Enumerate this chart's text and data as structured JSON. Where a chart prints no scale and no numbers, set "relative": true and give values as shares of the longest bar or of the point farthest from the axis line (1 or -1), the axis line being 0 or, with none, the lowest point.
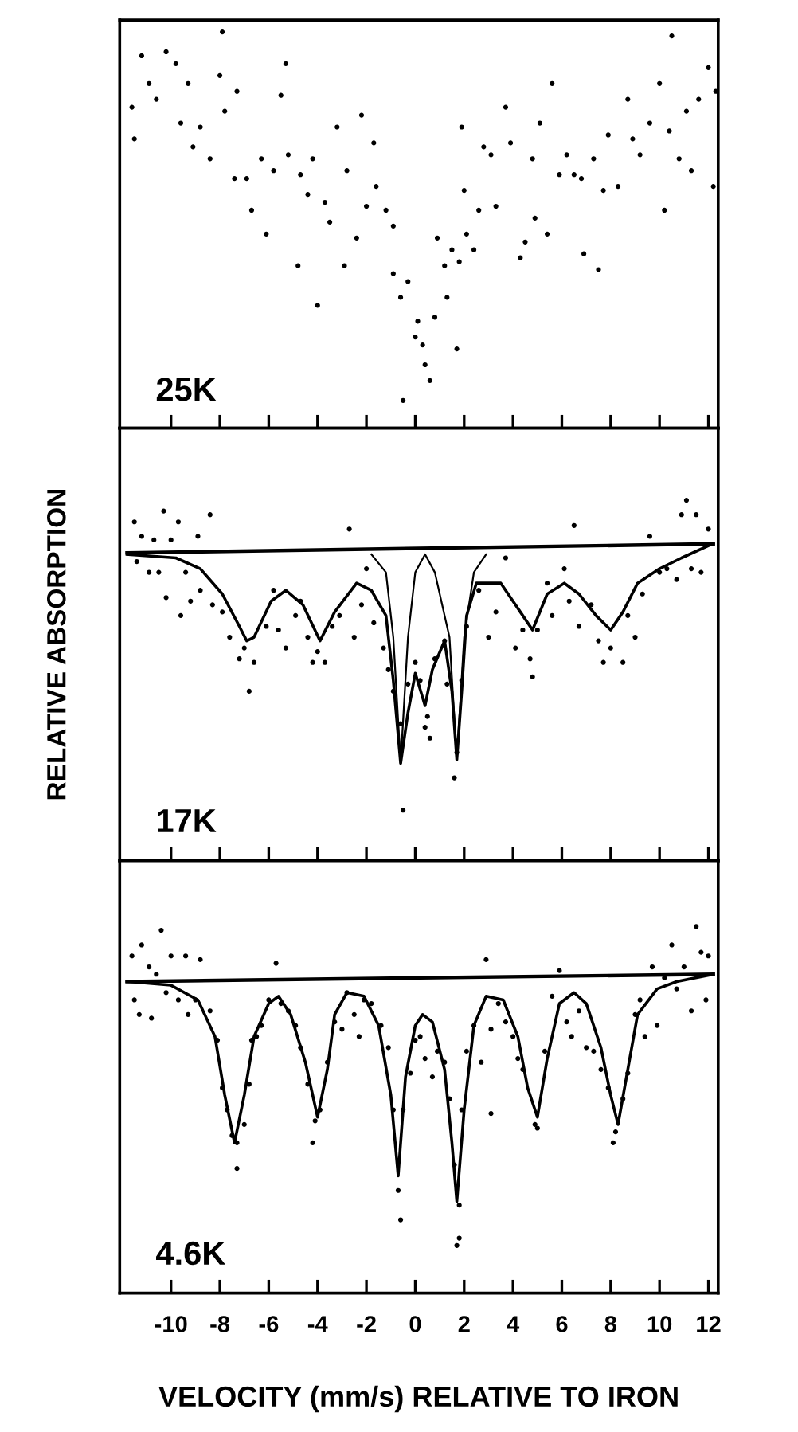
{
  "chart_data": [
    {
      "type": "scatter",
      "relative": true,
      "tick_labels": false,
      "xlim": [
        -12.1,
        12.4
      ],
      "xticks": [
        {
          "value": -10,
          "label": null
        },
        {
          "value": -8,
          "label": null
        },
        {
          "value": -6,
          "label": null
        },
        {
          "value": -4,
          "label": null
        },
        {
          "value": -2,
          "label": null
        },
        {
          "value": 0,
          "label": null
        },
        {
          "value": 2,
          "label": null
        },
        {
          "value": 4,
          "label": null
        },
        {
          "value": 6,
          "label": null
        },
        {
          "value": 8,
          "label": null
        },
        {
          "value": 10,
          "label": null
        },
        {
          "value": 12,
          "label": null
        }
      ],
      "annotations": [
        "25K"
      ],
      "series": [
        {
          "marker": "circle",
          "color": "#000000",
          "x": [
            -11.6,
            -11.5,
            -11.2,
            -10.9,
            -10.6,
            -10.2,
            -9.8,
            -9.6,
            -9.3,
            -9.1,
            -8.8,
            -8.4,
            -8.0,
            -7.9,
            -7.8,
            -7.4,
            -7.3,
            -6.9,
            -6.7,
            -6.3,
            -6.1,
            -5.8,
            -5.5,
            -5.3,
            -5.2,
            -4.8,
            -4.7,
            -4.4,
            -4.2,
            -4.0,
            -3.7,
            -3.5,
            -3.2,
            -2.9,
            -2.8,
            -2.4,
            -2.2,
            -2.0,
            -1.7,
            -1.6,
            -1.2,
            -0.9,
            -0.9,
            -0.6,
            -0.5,
            -0.3,
            0.0,
            0.1,
            0.3,
            0.4,
            0.6,
            0.8,
            0.9,
            1.2,
            1.3,
            1.5,
            1.7,
            1.8,
            1.9,
            2.0,
            2.1,
            2.4,
            2.6,
            2.8,
            3.1,
            3.3,
            3.7,
            3.9,
            4.3,
            4.5,
            4.8,
            4.9,
            5.1,
            5.4,
            5.6,
            5.9,
            6.2,
            6.5,
            6.8,
            6.9,
            7.3,
            7.5,
            7.7,
            7.9,
            8.3,
            8.7,
            8.9,
            9.2,
            9.6,
            10.0,
            10.2,
            10.4,
            10.5,
            10.8,
            11.1,
            11.3,
            11.6,
            12.0,
            12.2,
            12.3
          ],
          "values": [
            0.81,
            0.73,
            0.94,
            0.87,
            0.83,
            0.95,
            0.92,
            0.77,
            0.87,
            0.71,
            0.76,
            0.68,
            0.89,
            1.0,
            0.8,
            0.63,
            0.85,
            0.63,
            0.55,
            0.68,
            0.49,
            0.65,
            0.84,
            0.92,
            0.69,
            0.41,
            0.64,
            0.59,
            0.68,
            0.31,
            0.57,
            0.52,
            0.76,
            0.41,
            0.65,
            0.48,
            0.79,
            0.56,
            0.72,
            0.61,
            0.55,
            0.51,
            0.39,
            0.33,
            0.07,
            0.37,
            0.23,
            0.27,
            0.21,
            0.16,
            0.12,
            0.28,
            0.48,
            0.41,
            0.33,
            0.45,
            0.2,
            0.42,
            0.76,
            0.6,
            0.49,
            0.45,
            0.55,
            0.71,
            0.69,
            0.56,
            0.81,
            0.72,
            0.43,
            0.47,
            0.68,
            0.53,
            0.77,
            0.49,
            0.87,
            0.64,
            0.69,
            0.64,
            0.63,
            0.44,
            0.68,
            0.4,
            0.6,
            0.74,
            0.61,
            0.83,
            0.73,
            0.69,
            0.77,
            0.87,
            0.55,
            0.75,
            0.99,
            0.68,
            0.8,
            0.65,
            0.83,
            0.91,
            0.61,
            0.85
          ]
        }
      ]
    },
    {
      "type": "scatter",
      "relative": true,
      "tick_labels": false,
      "ylabel": "RELATIVE ABSORPTION",
      "xlim": [
        -12.1,
        12.4
      ],
      "xticks": [
        {
          "value": -10,
          "label": null
        },
        {
          "value": -8,
          "label": null
        },
        {
          "value": -6,
          "label": null
        },
        {
          "value": -4,
          "label": null
        },
        {
          "value": -2,
          "label": null
        },
        {
          "value": 0,
          "label": null
        },
        {
          "value": 2,
          "label": null
        },
        {
          "value": 4,
          "label": null
        },
        {
          "value": 6,
          "label": null
        },
        {
          "value": 8,
          "label": null
        },
        {
          "value": 10,
          "label": null
        },
        {
          "value": 12,
          "label": null
        }
      ],
      "annotations": [
        "17K"
      ],
      "series": [
        {
          "marker": "circle",
          "color": "#000000",
          "x": [
            -11.5,
            -11.4,
            -11.2,
            -10.9,
            -10.7,
            -10.5,
            -10.3,
            -10.2,
            -10.0,
            -9.7,
            -9.6,
            -9.4,
            -9.2,
            -8.9,
            -8.8,
            -8.4,
            -8.3,
            -7.9,
            -7.6,
            -7.2,
            -7.0,
            -6.8,
            -6.6,
            -6.1,
            -5.8,
            -5.6,
            -5.3,
            -4.9,
            -4.7,
            -4.4,
            -4.2,
            -4.0,
            -3.7,
            -3.4,
            -3.1,
            -2.7,
            -2.5,
            -2.2,
            -2.0,
            -1.7,
            -1.3,
            -1.1,
            -0.9,
            -0.6,
            -0.5,
            -0.3,
            0.0,
            0.2,
            0.4,
            0.5,
            0.6,
            0.8,
            1.2,
            1.3,
            1.6,
            1.7,
            1.9,
            2.1,
            2.6,
            3.0,
            3.3,
            3.7,
            4.1,
            4.4,
            4.7,
            4.8,
            5.0,
            5.4,
            5.6,
            6.1,
            6.3,
            6.5,
            6.7,
            7.2,
            7.5,
            7.7,
            8.0,
            8.5,
            8.7,
            9.0,
            9.3,
            9.6,
            10.0,
            10.3,
            10.7,
            10.9,
            11.1,
            11.3,
            11.5,
            11.7,
            12.0
          ],
          "values": [
            0.94,
            0.83,
            0.9,
            0.8,
            0.89,
            0.8,
            0.97,
            0.73,
            0.89,
            0.94,
            0.68,
            0.8,
            0.72,
            0.9,
            0.75,
            0.96,
            0.71,
            0.69,
            0.62,
            0.56,
            0.59,
            0.47,
            0.55,
            0.65,
            0.75,
            0.64,
            0.59,
            0.68,
            0.72,
            0.62,
            0.55,
            0.58,
            0.55,
            0.65,
            0.68,
            0.92,
            0.62,
            0.71,
            0.81,
            0.66,
            0.59,
            0.53,
            0.47,
            0.38,
            0.14,
            0.49,
            0.55,
            0.5,
            0.37,
            0.4,
            0.34,
            0.56,
            0.61,
            0.49,
            0.23,
            0.3,
            0.5,
            0.65,
            0.75,
            0.62,
            0.69,
            0.84,
            0.59,
            0.64,
            0.56,
            0.51,
            0.64,
            0.77,
            0.68,
            0.81,
            0.72,
            0.93,
            0.65,
            0.71,
            0.61,
            0.55,
            0.59,
            0.55,
            0.68,
            0.62,
            0.74,
            0.9,
            0.8,
            0.81,
            0.78,
            0.96,
            1.0,
            0.81,
            0.96,
            0.8,
            0.92
          ]
        },
        {
          "type": "line",
          "color": "#000000",
          "x": [
            -11.8,
            12.2
          ],
          "values": [
            0.854,
            0.879
          ]
        },
        {
          "type": "line",
          "color": "#000000",
          "x": [
            -11.8,
            -9.8,
            -8.8,
            -7.9,
            -7.2,
            -6.9,
            -6.6,
            -5.9,
            -5.3,
            -4.6,
            -3.9,
            -3.3,
            -2.4,
            -1.8,
            -1.2,
            -0.9,
            -0.6,
            -0.3,
            0.0,
            0.4,
            0.7,
            1.2,
            1.5,
            1.7,
            1.9,
            2.1,
            2.5,
            3.5,
            4.3,
            4.8,
            5.4,
            6.1,
            6.7,
            7.4,
            8.0,
            8.5,
            9.1,
            10.0,
            10.9,
            12.2
          ],
          "values": [
            0.85,
            0.84,
            0.81,
            0.74,
            0.65,
            0.61,
            0.62,
            0.72,
            0.75,
            0.71,
            0.61,
            0.69,
            0.77,
            0.75,
            0.68,
            0.5,
            0.27,
            0.41,
            0.52,
            0.43,
            0.53,
            0.61,
            0.47,
            0.28,
            0.47,
            0.68,
            0.77,
            0.77,
            0.69,
            0.64,
            0.74,
            0.77,
            0.74,
            0.68,
            0.64,
            0.69,
            0.77,
            0.81,
            0.84,
            0.88
          ]
        },
        {
          "type": "line",
          "color": "#000000",
          "x": [
            -1.8,
            -1.2,
            -0.9,
            -0.6,
            -0.3,
            0.0,
            0.4,
            0.8,
            1.4,
            1.7,
            2.0,
            2.4,
            2.9
          ],
          "values": [
            0.85,
            0.8,
            0.62,
            0.27,
            0.62,
            0.8,
            0.85,
            0.8,
            0.62,
            0.28,
            0.62,
            0.8,
            0.85
          ]
        }
      ]
    },
    {
      "type": "scatter",
      "relative": true,
      "tick_labels": "x",
      "xlabel": "VELOCITY (mm/s) RELATIVE TO IRON",
      "xlim": [
        -12.1,
        12.4
      ],
      "xticks": [
        -10,
        -8,
        -6,
        -4,
        -2,
        0,
        2,
        4,
        6,
        8,
        10,
        12
      ],
      "annotations": [
        "4.6K"
      ],
      "series": [
        {
          "marker": "circle",
          "color": "#000000",
          "x": [
            -11.6,
            -11.5,
            -11.3,
            -11.2,
            -10.9,
            -10.8,
            -10.6,
            -10.4,
            -10.2,
            -10.0,
            -9.7,
            -9.4,
            -9.3,
            -9.0,
            -8.8,
            -8.4,
            -8.1,
            -7.9,
            -7.7,
            -7.5,
            -7.3,
            -7.3,
            -7.0,
            -6.8,
            -6.7,
            -6.5,
            -6.3,
            -6.0,
            -5.7,
            -5.5,
            -5.2,
            -4.9,
            -4.7,
            -4.4,
            -4.2,
            -4.1,
            -3.9,
            -3.6,
            -3.3,
            -3.0,
            -2.8,
            -2.5,
            -2.3,
            -2.1,
            -1.8,
            -1.4,
            -1.1,
            -0.9,
            -0.7,
            -0.6,
            -0.5,
            -0.2,
            0.0,
            0.2,
            0.4,
            0.7,
            0.9,
            1.2,
            1.4,
            1.6,
            1.7,
            1.8,
            1.8,
            1.9,
            2.1,
            2.4,
            2.7,
            2.9,
            3.1,
            3.1,
            3.4,
            3.7,
            4.0,
            4.2,
            4.4,
            4.9,
            5.0,
            5.3,
            5.6,
            5.9,
            6.2,
            6.4,
            6.7,
            7.0,
            7.3,
            7.6,
            7.9,
            8.1,
            8.2,
            8.5,
            8.7,
            9.0,
            9.2,
            9.4,
            9.7,
            9.9,
            10.2,
            10.5,
            10.7,
            11.0,
            11.3,
            11.5,
            11.7,
            11.9,
            12.0
          ],
          "values": [
            0.92,
            0.8,
            0.76,
            0.95,
            0.89,
            0.75,
            0.87,
            0.99,
            0.82,
            0.92,
            0.8,
            0.92,
            0.76,
            0.8,
            0.91,
            0.77,
            0.69,
            0.56,
            0.5,
            0.43,
            0.41,
            0.34,
            0.46,
            0.57,
            0.69,
            0.7,
            0.73,
            0.8,
            0.9,
            0.79,
            0.77,
            0.73,
            0.67,
            0.57,
            0.41,
            0.47,
            0.5,
            0.63,
            0.74,
            0.72,
            0.82,
            0.76,
            0.7,
            0.8,
            0.79,
            0.73,
            0.67,
            0.5,
            0.28,
            0.2,
            0.5,
            0.6,
            0.69,
            0.7,
            0.64,
            0.59,
            0.66,
            0.63,
            0.53,
            0.35,
            0.13,
            0.24,
            0.15,
            0.5,
            0.66,
            0.73,
            0.63,
            0.91,
            0.49,
            0.72,
            0.79,
            0.74,
            0.7,
            0.64,
            0.61,
            0.46,
            0.45,
            0.66,
            0.81,
            0.88,
            0.74,
            0.7,
            0.77,
            0.67,
            0.66,
            0.61,
            0.56,
            0.41,
            0.44,
            0.53,
            0.6,
            0.76,
            0.8,
            0.7,
            0.89,
            0.73,
            0.86,
            0.95,
            0.83,
            0.89,
            0.77,
            1.0,
            0.93,
            0.8,
            0.92
          ]
        },
        {
          "type": "line",
          "color": "#000000",
          "x": [
            -11.8,
            12.2
          ],
          "values": [
            0.85,
            0.87
          ]
        },
        {
          "type": "line",
          "color": "#000000",
          "x": [
            -11.8,
            -10.0,
            -8.9,
            -8.2,
            -7.8,
            -7.4,
            -7.0,
            -6.6,
            -6.0,
            -5.6,
            -5.1,
            -4.5,
            -4.0,
            -3.6,
            -3.3,
            -2.8,
            -2.1,
            -1.5,
            -1.0,
            -0.7,
            -0.4,
            0.0,
            0.3,
            0.7,
            1.2,
            1.5,
            1.7,
            2.0,
            2.4,
            2.9,
            3.6,
            4.2,
            4.6,
            5.0,
            5.4,
            5.9,
            6.5,
            7.0,
            7.6,
            8.0,
            8.3,
            8.7,
            9.1,
            9.9,
            10.7,
            12.2
          ],
          "values": [
            0.85,
            0.84,
            0.8,
            0.7,
            0.54,
            0.41,
            0.54,
            0.7,
            0.79,
            0.81,
            0.76,
            0.63,
            0.48,
            0.61,
            0.76,
            0.82,
            0.81,
            0.73,
            0.54,
            0.32,
            0.59,
            0.73,
            0.76,
            0.74,
            0.61,
            0.41,
            0.25,
            0.5,
            0.73,
            0.81,
            0.8,
            0.7,
            0.56,
            0.48,
            0.64,
            0.79,
            0.82,
            0.79,
            0.67,
            0.54,
            0.46,
            0.61,
            0.76,
            0.83,
            0.85,
            0.87
          ]
        }
      ]
    }
  ]
}
